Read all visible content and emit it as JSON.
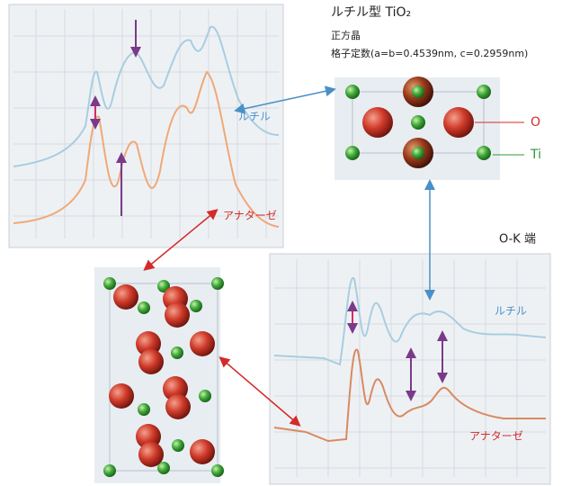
{
  "header": {
    "crystal_title": "ルチル型 TiO₂",
    "system": "正方晶",
    "lattice": "格子定数(a=b=0.4539nm, c=0.2959nm)"
  },
  "labels": {
    "o": "O",
    "ti": "Ti",
    "rutile_top": "ルチル",
    "anatase_top": "アナターゼ",
    "edge_bottom": "O-K 端",
    "rutile_bottom": "ルチル",
    "anatase_bottom": "アナターゼ"
  }
}
